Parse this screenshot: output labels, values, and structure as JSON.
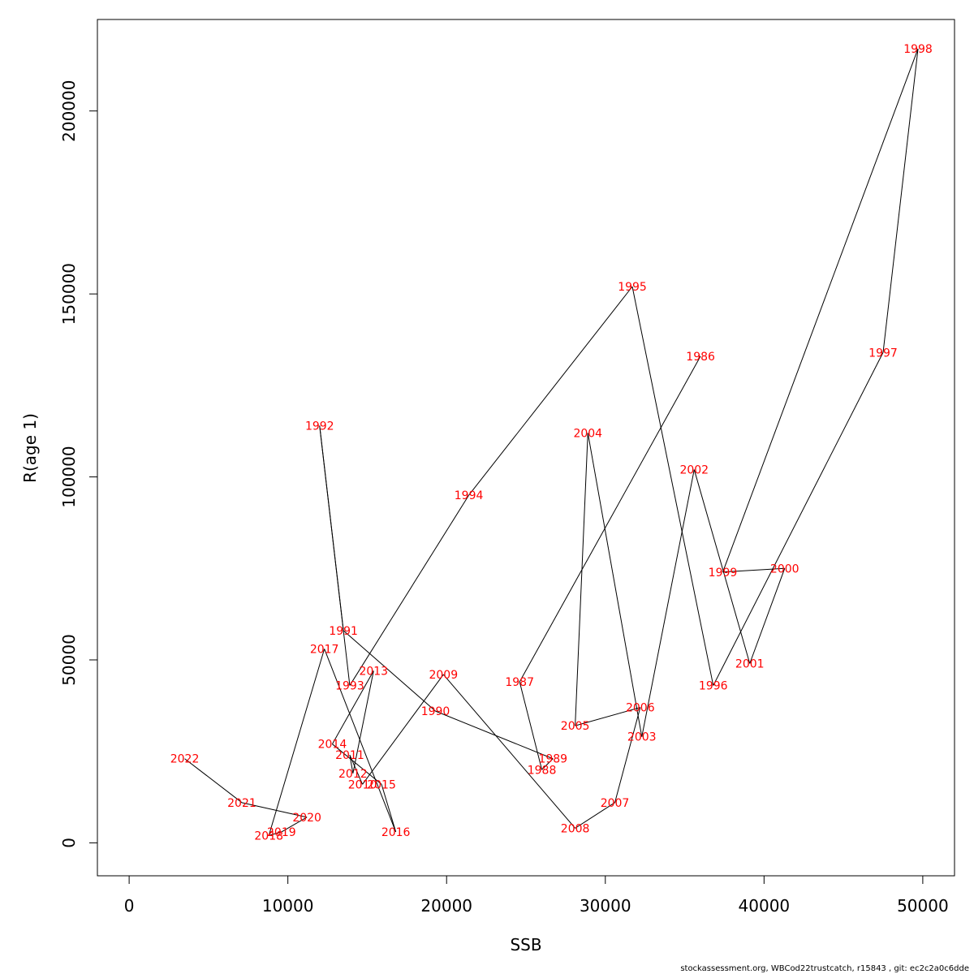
{
  "chart_data": {
    "type": "scatter",
    "xlabel": "SSB",
    "ylabel": "R(age 1)",
    "xlim": [
      -2000,
      52000
    ],
    "ylim": [
      -9000,
      225000
    ],
    "x_ticks": [
      0,
      10000,
      20000,
      30000,
      40000,
      50000
    ],
    "y_ticks": [
      0,
      50000,
      100000,
      150000,
      200000
    ],
    "grid": false,
    "connected_in_year_order": true,
    "line_color": "#000000",
    "label_color": "#ff0000",
    "points": [
      {
        "year": "1986",
        "x": 36000,
        "y": 133000
      },
      {
        "year": "1987",
        "x": 24600,
        "y": 44000
      },
      {
        "year": "1988",
        "x": 26000,
        "y": 20000
      },
      {
        "year": "1989",
        "x": 26700,
        "y": 23000
      },
      {
        "year": "1990",
        "x": 19300,
        "y": 36000
      },
      {
        "year": "1991",
        "x": 13500,
        "y": 58000
      },
      {
        "year": "1992",
        "x": 12000,
        "y": 114000
      },
      {
        "year": "1993",
        "x": 13900,
        "y": 43000
      },
      {
        "year": "1994",
        "x": 21400,
        "y": 95000
      },
      {
        "year": "1995",
        "x": 31700,
        "y": 152000
      },
      {
        "year": "1996",
        "x": 36800,
        "y": 43000
      },
      {
        "year": "1997",
        "x": 47500,
        "y": 134000
      },
      {
        "year": "1998",
        "x": 49700,
        "y": 217000
      },
      {
        "year": "1999",
        "x": 37400,
        "y": 74000
      },
      {
        "year": "2000",
        "x": 41300,
        "y": 75000
      },
      {
        "year": "2001",
        "x": 39100,
        "y": 49000
      },
      {
        "year": "2002",
        "x": 35600,
        "y": 102000
      },
      {
        "year": "2003",
        "x": 32300,
        "y": 29000
      },
      {
        "year": "2004",
        "x": 28900,
        "y": 112000
      },
      {
        "year": "2005",
        "x": 28100,
        "y": 32000
      },
      {
        "year": "2006",
        "x": 32200,
        "y": 37000
      },
      {
        "year": "2007",
        "x": 30600,
        "y": 11000
      },
      {
        "year": "2008",
        "x": 28100,
        "y": 4000
      },
      {
        "year": "2009",
        "x": 19800,
        "y": 46000
      },
      {
        "year": "2010",
        "x": 14700,
        "y": 16000
      },
      {
        "year": "2011",
        "x": 13900,
        "y": 24000
      },
      {
        "year": "2012",
        "x": 14100,
        "y": 19000
      },
      {
        "year": "2013",
        "x": 15400,
        "y": 47000
      },
      {
        "year": "2014",
        "x": 12800,
        "y": 27000
      },
      {
        "year": "2015",
        "x": 15900,
        "y": 16000
      },
      {
        "year": "2016",
        "x": 16800,
        "y": 3000
      },
      {
        "year": "2017",
        "x": 12300,
        "y": 53000
      },
      {
        "year": "2018",
        "x": 8800,
        "y": 2000
      },
      {
        "year": "2019",
        "x": 9600,
        "y": 3000
      },
      {
        "year": "2020",
        "x": 11200,
        "y": 7000
      },
      {
        "year": "2021",
        "x": 7100,
        "y": 11000
      },
      {
        "year": "2022",
        "x": 3500,
        "y": 23000
      }
    ]
  },
  "footer": "stockassessment.org, WBCod22trustcatch, r15843 , git: ec2c2a0c6dde"
}
